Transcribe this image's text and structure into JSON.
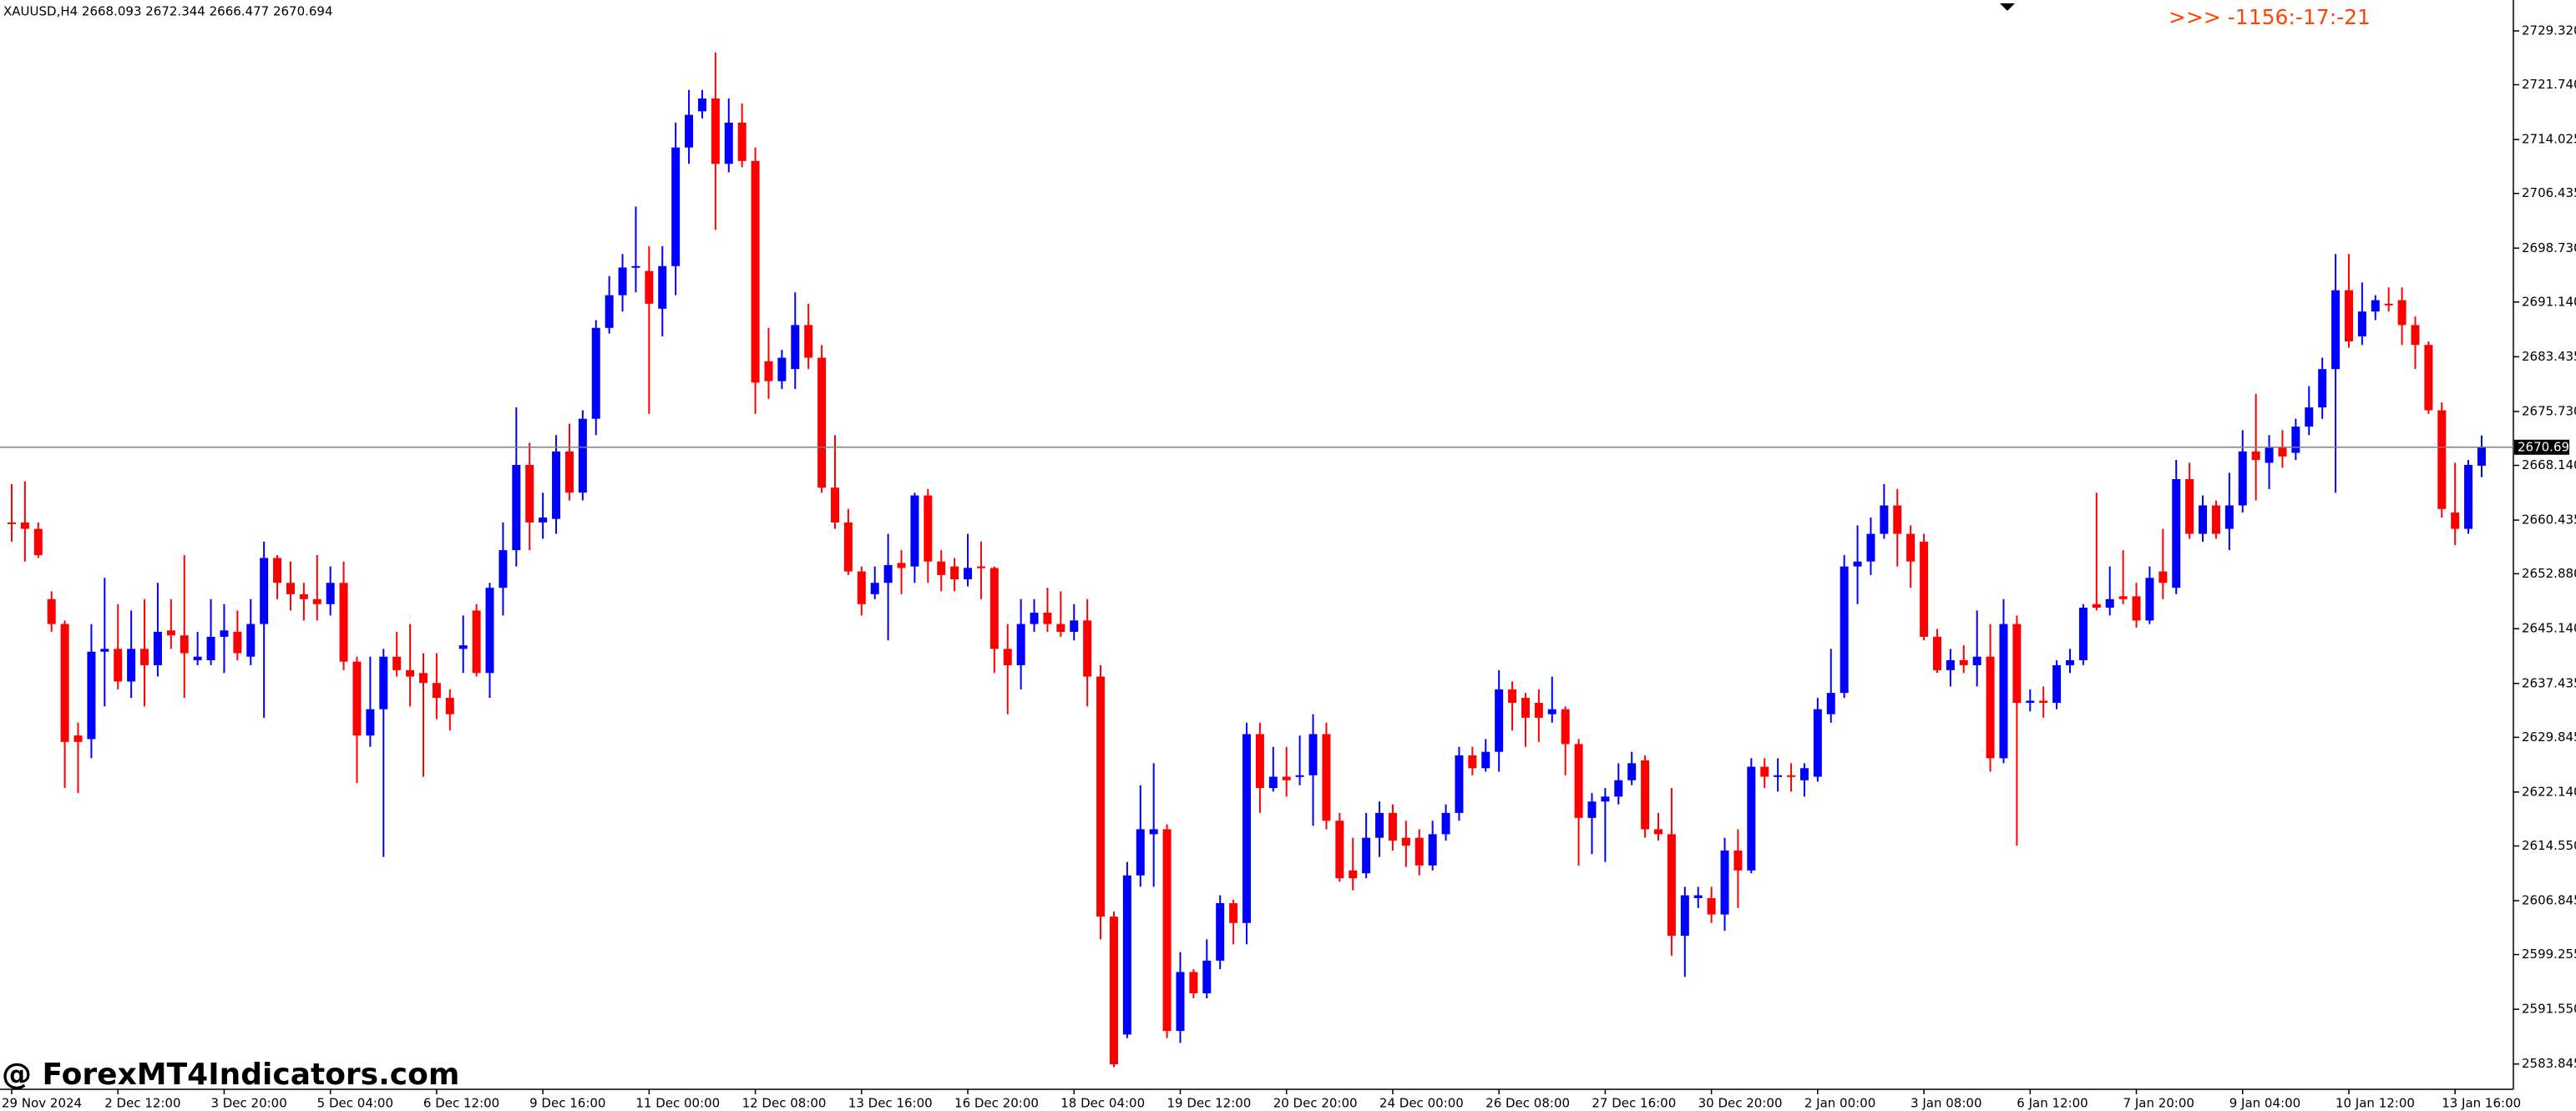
{
  "chart_data": {
    "type": "candlestick",
    "title": "XAUUSD,H4 2668.093 2672.344 2666.477 2670.694",
    "annotations": [
      ">>> -1156:-17:-21",
      "@ ForexMT4Indicators.com"
    ],
    "current_price": 2670.694,
    "up_color": "#0000ff",
    "down_color": "#ff0000",
    "grid": false,
    "ylim": [
      2580.4,
      2733.2
    ],
    "yticks": [
      {
        "value": 2729.32,
        "label": "2729.320"
      },
      {
        "value": 2721.74,
        "label": "2721.740"
      },
      2714.025,
      2706.435,
      {
        "value": 2698.73,
        "label": "2698.730"
      },
      {
        "value": 2691.14,
        "label": "2691.140"
      },
      2683.435,
      {
        "value": 2675.73,
        "label": "2675.730"
      },
      {
        "value": 2668.14,
        "label": "2668.140"
      },
      2660.435,
      {
        "value": 2652.88,
        "label": "2652.880"
      },
      {
        "value": 2645.14,
        "label": "2645.140"
      },
      2637.435,
      2629.845,
      {
        "value": 2622.14,
        "label": "2622.140"
      },
      {
        "value": 2614.55,
        "label": "2614.550"
      },
      2606.845,
      2599.255,
      {
        "value": 2591.55,
        "label": "2591.550"
      },
      2583.845
    ],
    "categories": [
      "29 Nov 2024",
      null,
      null,
      null,
      null,
      null,
      null,
      null,
      "2 Dec 12:00",
      null,
      null,
      null,
      null,
      null,
      null,
      null,
      "3 Dec 20:00",
      null,
      null,
      null,
      null,
      null,
      null,
      null,
      "5 Dec 04:00",
      null,
      null,
      null,
      null,
      null,
      null,
      null,
      "6 Dec 12:00",
      null,
      null,
      null,
      null,
      null,
      null,
      null,
      "9 Dec 16:00",
      null,
      null,
      null,
      null,
      null,
      null,
      null,
      "11 Dec 00:00",
      null,
      null,
      null,
      null,
      null,
      null,
      null,
      "12 Dec 08:00",
      null,
      null,
      null,
      null,
      null,
      null,
      null,
      "13 Dec 16:00",
      null,
      null,
      null,
      null,
      null,
      null,
      null,
      "16 Dec 20:00",
      null,
      null,
      null,
      null,
      null,
      null,
      null,
      "18 Dec 04:00",
      null,
      null,
      null,
      null,
      null,
      null,
      null,
      "19 Dec 12:00",
      null,
      null,
      null,
      null,
      null,
      null,
      null,
      "20 Dec 20:00",
      null,
      null,
      null,
      null,
      null,
      null,
      null,
      "24 Dec 00:00",
      null,
      null,
      null,
      null,
      null,
      null,
      null,
      "26 Dec 08:00",
      null,
      null,
      null,
      null,
      null,
      null,
      null,
      "27 Dec 16:00",
      null,
      null,
      null,
      null,
      null,
      null,
      null,
      "30 Dec 20:00",
      null,
      null,
      null,
      null,
      null,
      null,
      null,
      "2 Jan 00:00",
      null,
      null,
      null,
      null,
      null,
      null,
      null,
      "3 Jan 08:00",
      null,
      null,
      null,
      null,
      null,
      null,
      null,
      "6 Jan 12:00",
      null,
      null,
      null,
      null,
      null,
      null,
      null,
      "7 Jan 20:00",
      null,
      null,
      null,
      null,
      null,
      null,
      null,
      "9 Jan 04:00",
      null,
      null,
      null,
      null,
      null,
      null,
      null,
      "10 Jan 12:00",
      null,
      null,
      null,
      null,
      null,
      null,
      null,
      "13 Jan 16:00",
      null,
      null
    ],
    "open": [
      2660.1,
      2660.1,
      2659.2,
      2649.3,
      2645.8,
      2630.1,
      2629.6,
      2641.9,
      2642.3,
      2637.7,
      2642.3,
      2640.0,
      2644.9,
      2644.2,
      2640.7,
      2640.7,
      2644.0,
      2644.7,
      2641.2,
      2645.8,
      2655.1,
      2651.6,
      2650.0,
      2649.3,
      2648.6,
      2651.6,
      2640.5,
      2630.1,
      2633.8,
      2641.2,
      2639.3,
      2638.9,
      2637.5,
      2635.4,
      2642.3,
      2647.7,
      2638.9,
      2650.9,
      2656.2,
      2668.2,
      2660.1,
      2660.6,
      2670.1,
      2664.3,
      2674.7,
      2687.5,
      2692.1,
      2696.0,
      2695.5,
      2690.2,
      2696.2,
      2712.9,
      2718.0,
      2719.8,
      2710.6,
      2716.4,
      2711.0,
      2682.8,
      2680.0,
      2681.7,
      2687.9,
      2683.3,
      2665.0,
      2660.1,
      2653.2,
      2650.0,
      2651.6,
      2654.4,
      2653.9,
      2663.9,
      2654.6,
      2653.9,
      2652.1,
      2653.9,
      2653.7,
      2642.3,
      2640.0,
      2645.8,
      2647.4,
      2645.8,
      2644.7,
      2646.3,
      2638.4,
      2604.6,
      2588.0,
      2610.4,
      2616.2,
      2616.9,
      2588.5,
      2596.8,
      2593.8,
      2598.4,
      2606.5,
      2603.7,
      2630.3,
      2622.7,
      2624.3,
      2624.3,
      2624.5,
      2630.3,
      2618.1,
      2611.1,
      2610.7,
      2615.7,
      2619.2,
      2615.7,
      2615.7,
      2611.8,
      2616.2,
      2619.2,
      2627.3,
      2625.5,
      2627.8,
      2636.6,
      2635.4,
      2634.7,
      2633.1,
      2633.8,
      2628.9,
      2618.5,
      2620.8,
      2621.5,
      2623.8,
      2626.6,
      2616.9,
      2616.2,
      2601.9,
      2607.2,
      2607.2,
      2604.9,
      2613.9,
      2611.1,
      2625.7,
      2624.3,
      2624.5,
      2623.8,
      2624.3,
      2633.1,
      2636.1,
      2653.9,
      2654.6,
      2658.5,
      2662.5,
      2658.5,
      2657.4,
      2644.0,
      2639.3,
      2640.7,
      2640.0,
      2641.2,
      2626.9,
      2645.8,
      2634.7,
      2635.0,
      2634.7,
      2640.0,
      2640.7,
      2648.6,
      2648.1,
      2649.7,
      2649.7,
      2646.3,
      2653.2,
      2650.9,
      2666.2,
      2658.5,
      2662.5,
      2659.2,
      2662.5,
      2670.1,
      2668.5,
      2670.6,
      2669.9,
      2673.6,
      2676.3,
      2681.7,
      2692.8,
      2686.3,
      2689.8,
      2690.9,
      2691.4,
      2687.9,
      2685.1,
      2675.9,
      2661.5,
      2659.2,
      2668.093
    ],
    "high": [
      2665.5,
      2665.9,
      2660.1,
      2650.4,
      2646.3,
      2631.9,
      2645.8,
      2652.3,
      2648.6,
      2647.7,
      2649.3,
      2651.6,
      2649.3,
      2655.5,
      2644.7,
      2649.3,
      2648.6,
      2647.7,
      2649.3,
      2657.4,
      2655.5,
      2654.6,
      2651.6,
      2655.5,
      2653.9,
      2654.6,
      2641.2,
      2641.2,
      2642.3,
      2644.7,
      2645.8,
      2641.7,
      2641.7,
      2636.6,
      2647.0,
      2648.6,
      2651.6,
      2660.1,
      2676.3,
      2671.3,
      2664.3,
      2672.4,
      2674.0,
      2675.9,
      2688.6,
      2694.8,
      2697.9,
      2704.6,
      2699.0,
      2699.0,
      2716.4,
      2721.0,
      2721.0,
      2726.3,
      2719.8,
      2719.1,
      2712.9,
      2687.5,
      2684.4,
      2692.5,
      2690.9,
      2685.1,
      2672.4,
      2662.0,
      2653.9,
      2653.9,
      2658.5,
      2656.2,
      2664.3,
      2664.8,
      2656.2,
      2655.1,
      2658.5,
      2657.4,
      2653.9,
      2645.8,
      2649.3,
      2649.3,
      2650.9,
      2650.4,
      2648.6,
      2649.3,
      2640.0,
      2605.3,
      2612.3,
      2623.1,
      2626.2,
      2617.6,
      2599.6,
      2597.2,
      2601.4,
      2607.6,
      2607.0,
      2631.9,
      2631.9,
      2628.5,
      2628.5,
      2630.1,
      2633.1,
      2631.9,
      2619.2,
      2615.7,
      2619.2,
      2620.8,
      2620.4,
      2618.1,
      2616.9,
      2618.1,
      2620.4,
      2628.5,
      2628.5,
      2629.6,
      2639.3,
      2637.7,
      2636.1,
      2636.6,
      2638.4,
      2634.2,
      2629.6,
      2622.0,
      2622.7,
      2626.2,
      2627.8,
      2627.3,
      2619.2,
      2622.7,
      2608.8,
      2608.8,
      2608.8,
      2615.7,
      2616.9,
      2626.9,
      2626.9,
      2626.9,
      2626.2,
      2626.2,
      2635.4,
      2642.3,
      2655.5,
      2659.7,
      2660.8,
      2665.5,
      2664.8,
      2659.7,
      2658.5,
      2645.1,
      2642.3,
      2642.8,
      2647.7,
      2645.8,
      2649.3,
      2647.0,
      2636.6,
      2637.0,
      2640.7,
      2642.3,
      2648.6,
      2664.3,
      2653.9,
      2656.2,
      2651.6,
      2653.9,
      2659.2,
      2668.9,
      2668.5,
      2663.9,
      2663.2,
      2667.1,
      2673.1,
      2678.2,
      2672.4,
      2673.1,
      2674.7,
      2679.3,
      2683.3,
      2697.9,
      2697.9,
      2693.9,
      2692.1,
      2693.2,
      2693.2,
      2689.1,
      2685.6,
      2677.0,
      2668.5,
      2668.9,
      2672.344
    ],
    "low": [
      2657.4,
      2654.6,
      2655.1,
      2644.7,
      2622.7,
      2622.0,
      2626.9,
      2634.2,
      2636.6,
      2635.4,
      2634.2,
      2638.4,
      2642.3,
      2635.4,
      2640.0,
      2640.0,
      2638.9,
      2640.7,
      2640.0,
      2632.6,
      2649.3,
      2647.7,
      2646.3,
      2646.3,
      2647.0,
      2639.3,
      2623.4,
      2628.5,
      2613.0,
      2638.4,
      2634.2,
      2624.3,
      2632.4,
      2630.8,
      2638.9,
      2638.4,
      2635.4,
      2647.0,
      2653.9,
      2656.2,
      2657.8,
      2658.5,
      2663.2,
      2663.2,
      2672.4,
      2686.7,
      2689.8,
      2692.5,
      2675.4,
      2686.3,
      2692.1,
      2710.6,
      2717.0,
      2701.3,
      2709.4,
      2710.1,
      2675.4,
      2677.5,
      2678.9,
      2678.9,
      2681.7,
      2664.3,
      2659.2,
      2652.7,
      2647.0,
      2649.3,
      2643.5,
      2650.0,
      2651.6,
      2651.6,
      2650.4,
      2650.4,
      2651.1,
      2649.3,
      2638.9,
      2633.1,
      2636.6,
      2644.7,
      2644.7,
      2644.0,
      2643.5,
      2634.2,
      2601.4,
      2583.4,
      2587.5,
      2608.8,
      2608.8,
      2587.5,
      2586.8,
      2593.1,
      2593.1,
      2597.2,
      2600.7,
      2600.7,
      2619.2,
      2622.2,
      2621.5,
      2623.1,
      2617.4,
      2616.9,
      2609.5,
      2608.3,
      2610.0,
      2613.0,
      2613.9,
      2611.6,
      2610.4,
      2611.1,
      2615.3,
      2618.1,
      2624.5,
      2625.0,
      2625.0,
      2630.8,
      2628.5,
      2629.2,
      2631.9,
      2624.5,
      2611.8,
      2613.4,
      2612.3,
      2620.4,
      2623.1,
      2615.7,
      2615.3,
      2599.1,
      2596.1,
      2605.8,
      2603.7,
      2602.6,
      2605.8,
      2610.7,
      2622.7,
      2622.2,
      2622.2,
      2621.5,
      2623.6,
      2631.9,
      2635.4,
      2648.6,
      2652.7,
      2657.8,
      2653.9,
      2650.9,
      2643.5,
      2638.9,
      2637.0,
      2638.9,
      2637.0,
      2625.0,
      2626.2,
      2614.6,
      2633.5,
      2632.6,
      2633.8,
      2638.9,
      2640.0,
      2647.7,
      2647.0,
      2648.6,
      2645.3,
      2645.8,
      2649.3,
      2650.0,
      2657.8,
      2657.4,
      2657.8,
      2656.2,
      2661.5,
      2663.2,
      2664.8,
      2667.8,
      2668.9,
      2672.4,
      2674.7,
      2664.3,
      2684.7,
      2685.1,
      2688.6,
      2689.8,
      2685.1,
      2681.7,
      2675.4,
      2660.8,
      2656.9,
      2658.5,
      2666.477
    ],
    "close": [
      2659.9,
      2659.2,
      2655.5,
      2645.8,
      2629.2,
      2629.2,
      2641.9,
      2642.3,
      2637.7,
      2642.3,
      2640.0,
      2644.7,
      2644.2,
      2641.7,
      2641.2,
      2644.0,
      2644.9,
      2641.7,
      2645.8,
      2655.1,
      2651.6,
      2650.0,
      2649.3,
      2648.6,
      2651.6,
      2640.5,
      2630.1,
      2633.8,
      2641.2,
      2639.3,
      2638.4,
      2637.5,
      2635.4,
      2633.1,
      2642.8,
      2638.9,
      2650.9,
      2656.2,
      2668.2,
      2660.1,
      2660.8,
      2670.1,
      2664.3,
      2674.7,
      2687.5,
      2692.1,
      2696.0,
      2696.2,
      2690.9,
      2696.2,
      2712.9,
      2717.5,
      2719.8,
      2710.6,
      2716.4,
      2711.0,
      2679.8,
      2680.0,
      2683.3,
      2687.9,
      2683.3,
      2665.0,
      2660.1,
      2653.2,
      2648.6,
      2651.6,
      2654.1,
      2653.7,
      2663.9,
      2654.6,
      2652.7,
      2652.1,
      2653.7,
      2653.7,
      2642.3,
      2640.0,
      2645.8,
      2647.4,
      2645.8,
      2644.7,
      2646.3,
      2638.4,
      2604.6,
      2583.8,
      2610.4,
      2616.9,
      2616.9,
      2588.5,
      2596.8,
      2593.8,
      2598.4,
      2606.5,
      2603.7,
      2630.3,
      2622.7,
      2624.3,
      2623.8,
      2624.5,
      2630.3,
      2618.1,
      2610.0,
      2610.0,
      2615.7,
      2619.2,
      2615.3,
      2614.6,
      2611.8,
      2616.2,
      2619.2,
      2627.3,
      2625.5,
      2627.8,
      2636.6,
      2634.7,
      2632.6,
      2632.6,
      2633.8,
      2628.9,
      2618.5,
      2620.8,
      2621.5,
      2623.8,
      2626.2,
      2616.9,
      2616.2,
      2601.9,
      2607.6,
      2607.6,
      2604.9,
      2613.9,
      2611.1,
      2625.7,
      2624.3,
      2624.5,
      2624.3,
      2625.5,
      2633.8,
      2636.1,
      2653.9,
      2654.6,
      2658.5,
      2662.5,
      2658.5,
      2654.6,
      2644.0,
      2639.3,
      2640.7,
      2640.0,
      2641.2,
      2626.9,
      2645.8,
      2634.7,
      2635.0,
      2634.7,
      2640.0,
      2640.7,
      2648.1,
      2648.1,
      2649.3,
      2649.3,
      2646.3,
      2652.3,
      2651.6,
      2666.2,
      2658.5,
      2662.5,
      2658.5,
      2662.5,
      2670.1,
      2668.9,
      2670.6,
      2669.4,
      2673.6,
      2676.3,
      2681.7,
      2692.8,
      2685.6,
      2689.8,
      2691.4,
      2690.7,
      2687.9,
      2685.1,
      2675.9,
      2662.0,
      2659.2,
      2668.2,
      2670.694
    ]
  }
}
